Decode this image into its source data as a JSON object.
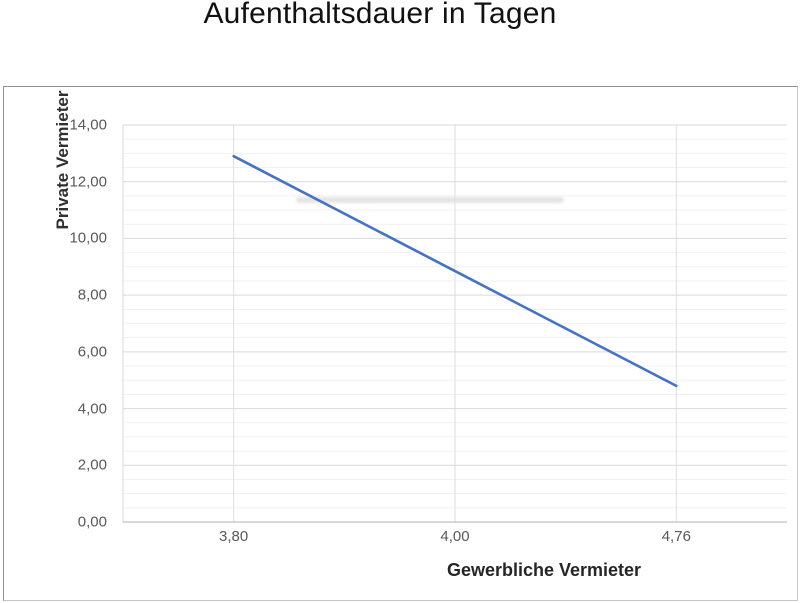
{
  "chart_data": {
    "type": "line",
    "title": "Aufenthaltsdauer in Tagen",
    "xlabel": "Gewerbliche Vermieter",
    "ylabel": "Private Vermieter",
    "categories": [
      "3,80",
      "4,00",
      "4,76"
    ],
    "values": [
      12.9,
      8.85,
      4.8
    ],
    "ylim": [
      0,
      14
    ],
    "y_major_step": 2,
    "y_minor_step": 0.5,
    "y_tick_labels": [
      "0,00",
      "2,00",
      "4,00",
      "6,00",
      "8,00",
      "10,00",
      "12,00",
      "14,00"
    ],
    "grid": true,
    "legend": "none",
    "colors": {
      "line": "#4472c4",
      "major_grid": "#d9d9d9",
      "vertical_grid": "#dedede",
      "minor_grid": "#f1f1f1",
      "axis_line": "#c0c0c0",
      "tick_text": "#595959",
      "title_text": "#111111"
    }
  }
}
